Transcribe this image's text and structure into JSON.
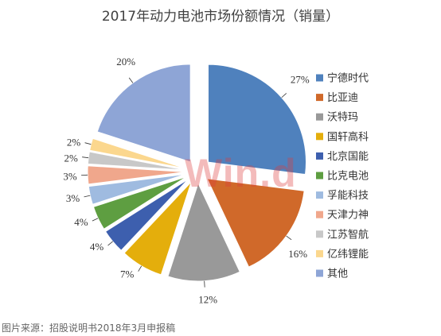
{
  "title": "2017年动力电池市场份额情况（销量）",
  "watermark": "Win.d",
  "source_note": "图片来源：招股说明书2018年3月申报稿",
  "chart_data": {
    "type": "pie",
    "title": "2017年动力电池市场份额情况（销量）",
    "unit": "%",
    "legend_position": "right",
    "slices": [
      {
        "name": "宁德时代",
        "value": 27,
        "label": "27%",
        "color": "#4f81bd"
      },
      {
        "name": "比亚迪",
        "value": 16,
        "label": "16%",
        "color": "#d0692a"
      },
      {
        "name": "沃特玛",
        "value": 12,
        "label": "12%",
        "color": "#999999"
      },
      {
        "name": "国轩高科",
        "value": 7,
        "label": "7%",
        "color": "#e4ae0c"
      },
      {
        "name": "北京国能",
        "value": 4,
        "label": "4%",
        "color": "#3d5fae"
      },
      {
        "name": "比克电池",
        "value": 4,
        "label": "4%",
        "color": "#5e9e41"
      },
      {
        "name": "孚能科技",
        "value": 3,
        "label": "3%",
        "color": "#9fbbe0"
      },
      {
        "name": "天津力神",
        "value": 3,
        "label": "3%",
        "color": "#f0a78c"
      },
      {
        "name": "江苏智航",
        "value": 2,
        "label": "2%",
        "color": "#c8c8c8"
      },
      {
        "name": "亿纬锂能",
        "value": 2,
        "label": "2%",
        "color": "#fbd78e"
      },
      {
        "name": "其他",
        "value": 20,
        "label": "20%",
        "color": "#8ea5d6"
      }
    ]
  }
}
